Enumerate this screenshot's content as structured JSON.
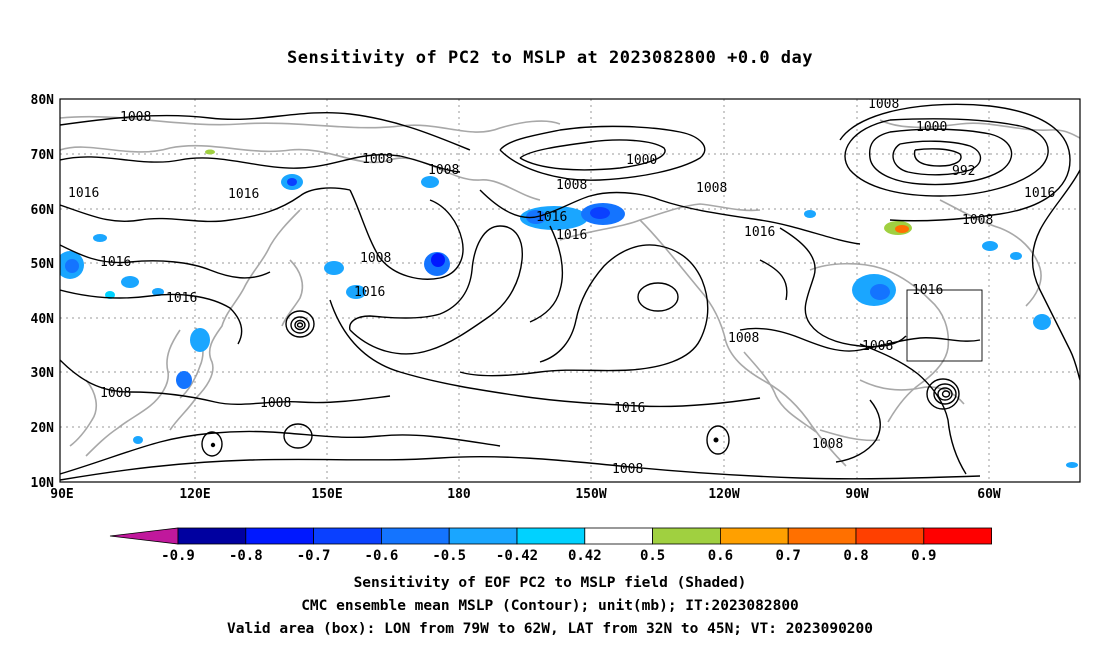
{
  "title": "Sensitivity of PC2 to MSLP at 2023082800 +0.0 day",
  "lat_labels": [
    "80N",
    "70N",
    "60N",
    "50N",
    "40N",
    "30N",
    "20N",
    "10N"
  ],
  "lon_labels": [
    "90E",
    "120E",
    "150E",
    "180",
    "150W",
    "120W",
    "90W",
    "60W"
  ],
  "contour_labels": [
    "1008",
    "1016",
    "1008",
    "1008",
    "1016",
    "1000",
    "1008",
    "1008",
    "1016",
    "1008",
    "1000",
    "992",
    "1008",
    "1016",
    "1016",
    "1016",
    "1016",
    "1008",
    "1016",
    "1008",
    "1008",
    "1008",
    "1016",
    "1008",
    "1008"
  ],
  "colorbar": {
    "labels": [
      "-0.9",
      "-0.8",
      "-0.7",
      "-0.6",
      "-0.5",
      "-0.42",
      "0.42",
      "0.5",
      "0.6",
      "0.7",
      "0.8",
      "0.9"
    ],
    "colors": [
      "#0000a0",
      "#0018ff",
      "#0a40ff",
      "#1474ff",
      "#1aa6ff",
      "#00d2ff",
      "#ffffff",
      "#a0d040",
      "#ffa000",
      "#ff7000",
      "#ff4000",
      "#ff0000"
    ],
    "low_end_color": "#c0189c",
    "high_end_color": "#ff9ec8"
  },
  "captions": [
    "Sensitivity of EOF PC2 to MSLP field (Shaded)",
    "CMC ensemble mean MSLP (Contour); unit(mb); IT:2023082800",
    "Valid area (box): LON from 79W to 62W, LAT from 32N to 45N; VT: 2023090200"
  ]
}
